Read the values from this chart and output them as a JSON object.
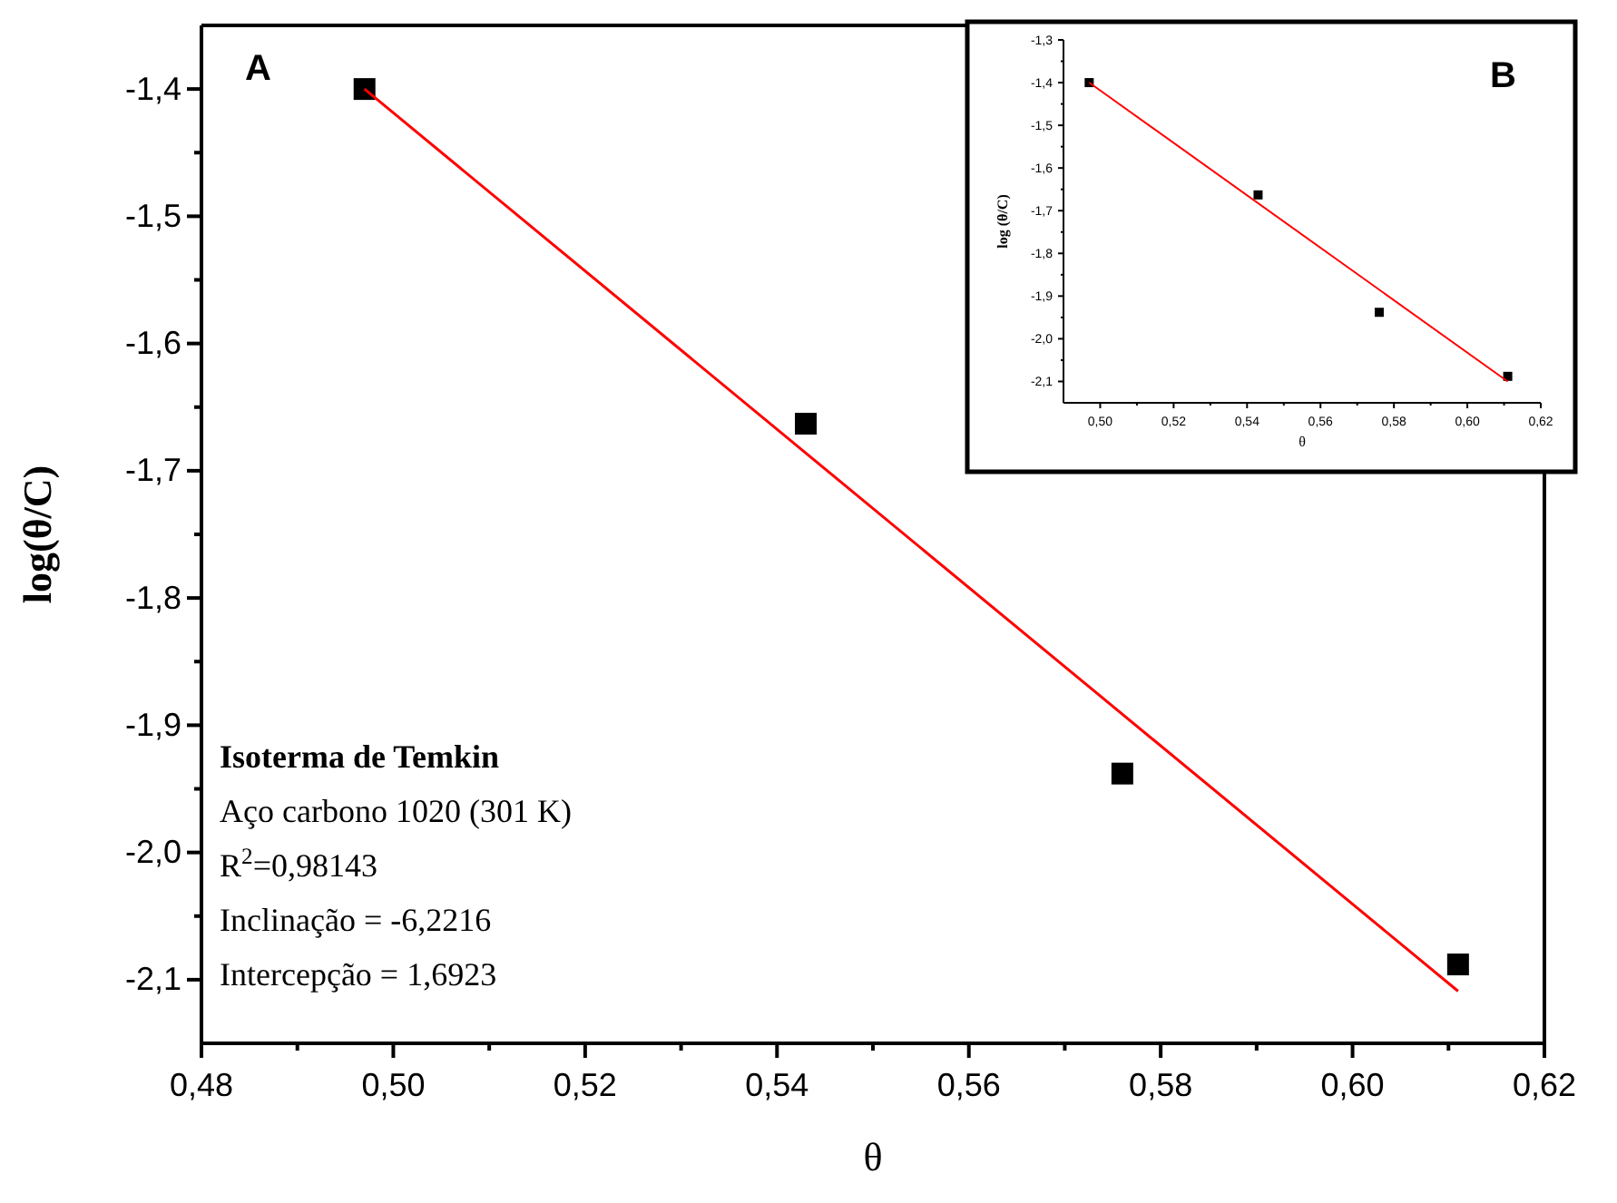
{
  "chart_data": [
    {
      "type": "scatter",
      "title": "A",
      "xlabel": "θ",
      "ylabel": "log(θ/C)",
      "xlim": [
        0.48,
        0.62
      ],
      "ylim": [
        -2.15,
        -1.35
      ],
      "xticks": [
        {
          "value": 0.48,
          "label": "0,48"
        },
        {
          "value": 0.5,
          "label": "0,50"
        },
        {
          "value": 0.52,
          "label": "0,52"
        },
        {
          "value": 0.54,
          "label": "0,54"
        },
        {
          "value": 0.56,
          "label": "0,56"
        },
        {
          "value": 0.58,
          "label": "0,58"
        },
        {
          "value": 0.6,
          "label": "0,60"
        },
        {
          "value": 0.62,
          "label": "0,62"
        }
      ],
      "yticks": [
        {
          "value": -1.4,
          "label": "-1,4"
        },
        {
          "value": -1.5,
          "label": "-1,5"
        },
        {
          "value": -1.6,
          "label": "-1,6"
        },
        {
          "value": -1.7,
          "label": "-1,7"
        },
        {
          "value": -1.8,
          "label": "-1,8"
        },
        {
          "value": -1.9,
          "label": "-1,9"
        },
        {
          "value": -2.0,
          "label": "-2,0"
        },
        {
          "value": -2.1,
          "label": "-2,1"
        }
      ],
      "grid": false,
      "series": [
        {
          "marker": "square",
          "color": "#000000",
          "x": [
            0.497,
            0.543,
            0.576,
            0.611
          ],
          "values": [
            -1.4,
            -1.663,
            -1.938,
            -2.088
          ]
        },
        {
          "type": "line",
          "marker": "none",
          "color": "#ff0000",
          "x": [
            0.497,
            0.611
          ],
          "values": [
            -1.4,
            -2.109
          ]
        }
      ],
      "annotations": [
        "Isoterma de Temkin",
        "Aço carbono 1020 (301 K)",
        "R$^{2}$=0,98143",
        "Inclinação = -6,2216",
        "Intercepção = 1,6923"
      ]
    },
    {
      "type": "scatter",
      "title": "B",
      "xlabel": "θ",
      "ylabel": "log (θ/C)",
      "xlim": [
        0.49,
        0.62
      ],
      "ylim": [
        -2.15,
        -1.3
      ],
      "xticks": [
        {
          "value": 0.5,
          "label": "0,50"
        },
        {
          "value": 0.52,
          "label": "0,52"
        },
        {
          "value": 0.54,
          "label": "0,54"
        },
        {
          "value": 0.56,
          "label": "0,56"
        },
        {
          "value": 0.58,
          "label": "0,58"
        },
        {
          "value": 0.6,
          "label": "0,60"
        },
        {
          "value": 0.62,
          "label": "0,62"
        }
      ],
      "yticks": [
        {
          "value": -1.3,
          "label": "-1,3"
        },
        {
          "value": -1.4,
          "label": "-1,4"
        },
        {
          "value": -1.5,
          "label": "-1,5"
        },
        {
          "value": -1.6,
          "label": "-1,6"
        },
        {
          "value": -1.7,
          "label": "-1,7"
        },
        {
          "value": -1.8,
          "label": "-1,8"
        },
        {
          "value": -1.9,
          "label": "-1,9"
        },
        {
          "value": -2.0,
          "label": "-2,0"
        },
        {
          "value": -2.1,
          "label": "-2,1"
        }
      ],
      "grid": false,
      "series": [
        {
          "marker": "square",
          "color": "#000000",
          "x": [
            0.497,
            0.543,
            0.576,
            0.611
          ],
          "values": [
            -1.4,
            -1.663,
            -1.938,
            -2.088
          ]
        },
        {
          "type": "line",
          "marker": "none",
          "color": "#ff0000",
          "x": [
            0.497,
            0.611
          ],
          "values": [
            -1.4,
            -2.1
          ]
        }
      ]
    }
  ]
}
